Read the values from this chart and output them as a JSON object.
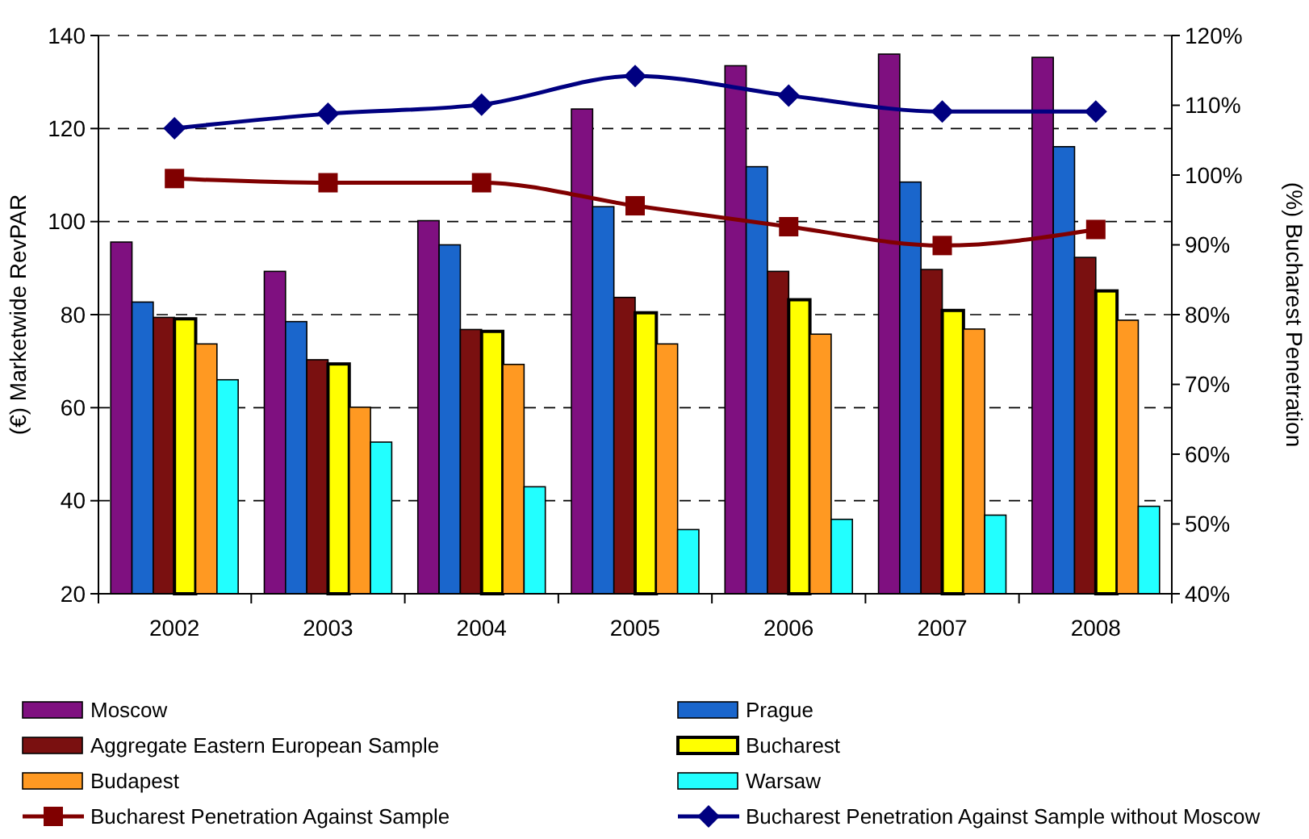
{
  "chart_data": {
    "type": "bar",
    "xlabel": null,
    "ylabel": "(€) Marketwide RevPAR",
    "y2label": "(%) Bucharest Penetration",
    "categories": [
      "2002",
      "2003",
      "2004",
      "2005",
      "2006",
      "2007",
      "2008"
    ],
    "series": [
      {
        "name": "Moscow",
        "color": "#7f1080",
        "values": [
          95.6,
          89.3,
          100.2,
          124.2,
          133.5,
          136.0,
          135.3
        ]
      },
      {
        "name": "Prague",
        "color": "#1a66cc",
        "values": [
          82.7,
          78.5,
          95.0,
          103.2,
          111.8,
          108.5,
          116.1
        ]
      },
      {
        "name": "Aggregate Eastern European Sample",
        "color": "#7a1010",
        "values": [
          79.4,
          70.3,
          76.8,
          83.7,
          89.3,
          89.7,
          92.3
        ]
      },
      {
        "name": "Bucharest",
        "color": "#ffff00",
        "values": [
          79.1,
          69.4,
          76.4,
          80.4,
          83.2,
          80.9,
          85.1
        ]
      },
      {
        "name": "Budapest",
        "color": "#ff9922",
        "values": [
          73.7,
          60.1,
          69.3,
          73.7,
          75.8,
          76.9,
          78.8
        ]
      },
      {
        "name": "Warsaw",
        "color": "#22ffff",
        "values": [
          66.0,
          52.6,
          43.0,
          33.8,
          36.0,
          36.9,
          38.8
        ]
      },
      {
        "name": "Bucharest Penetration Against Sample",
        "type": "line",
        "axis": "y2",
        "marker": "square",
        "color": "#800000",
        "values": [
          99.5,
          98.9,
          98.9,
          95.6,
          92.6,
          89.9,
          92.2
        ]
      },
      {
        "name": "Bucharest Penetration Against Sample without Moscow",
        "type": "line",
        "axis": "y2",
        "marker": "diamond",
        "color": "#000080",
        "values": [
          106.7,
          108.8,
          110.1,
          114.2,
          111.4,
          109.1,
          109.1
        ]
      }
    ],
    "ylim": [
      20,
      140
    ],
    "yticks": [
      20,
      40,
      60,
      80,
      100,
      120,
      140
    ],
    "y2lim": [
      40,
      120
    ],
    "y2ticks": [
      {
        "value": 40,
        "label": "40%"
      },
      {
        "value": 50,
        "label": "50%"
      },
      {
        "value": 60,
        "label": "60%"
      },
      {
        "value": 70,
        "label": "70%"
      },
      {
        "value": 80,
        "label": "80%"
      },
      {
        "value": 90,
        "label": "90%"
      },
      {
        "value": 100,
        "label": "100%"
      },
      {
        "value": 110,
        "label": "110%"
      },
      {
        "value": 120,
        "label": "120%"
      }
    ],
    "grid": "y",
    "legend": "bottom",
    "line_style": "solid"
  }
}
